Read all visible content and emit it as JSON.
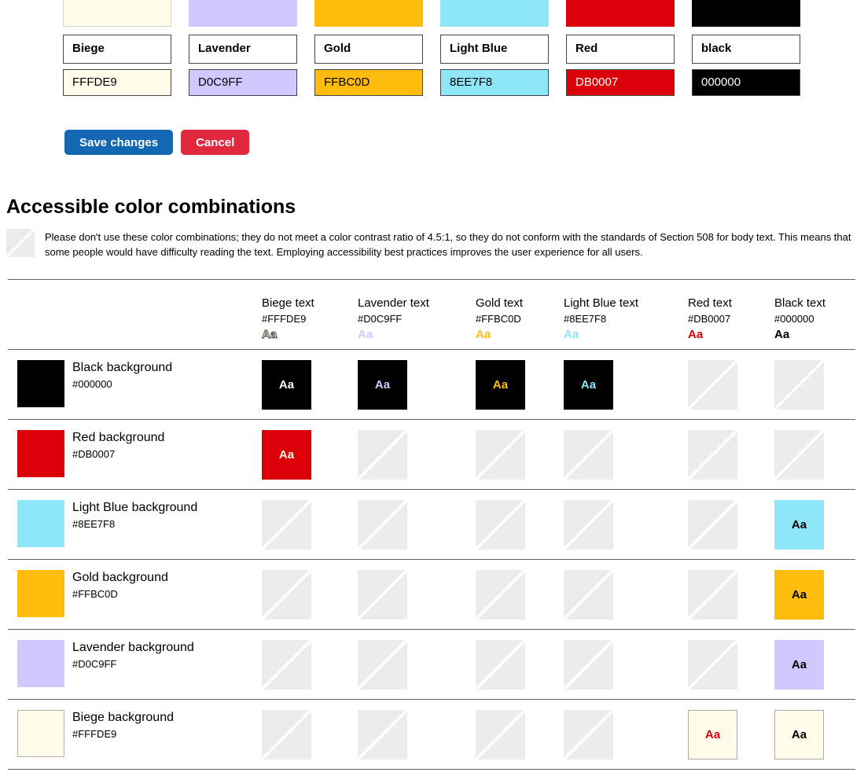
{
  "palette_editor": {
    "swatches": [
      {
        "name": "Biege",
        "hex": "FFFDE9",
        "color": "#FFFDE9",
        "text_color": "#000000",
        "light": true
      },
      {
        "name": "Lavender",
        "hex": "D0C9FF",
        "color": "#D0C9FF",
        "text_color": "#000000"
      },
      {
        "name": "Gold",
        "hex": "FFBC0D",
        "color": "#FFBC0D",
        "text_color": "#000000"
      },
      {
        "name": "Light Blue",
        "hex": "8EE7F8",
        "color": "#8EE7F8",
        "text_color": "#000000"
      },
      {
        "name": "Red",
        "hex": "DB0007",
        "color": "#DB0007",
        "text_color": "#FFFFFF"
      },
      {
        "name": "black",
        "hex": "000000",
        "color": "#000000",
        "text_color": "#FFFFFF"
      }
    ],
    "save_label": "Save changes",
    "cancel_label": "Cancel"
  },
  "accessibility_section": {
    "title": "Accessible color combinations",
    "disclaimer": "Please don't use these color combinations; they do not meet a color contrast ratio of 4.5:1, so they do not conform with the standards of Section 508 for body text. This means that some people would have difficulty reading the text. Employing accessibility best practices improves the user experience for all users."
  },
  "matrix": {
    "sample_text": "Aa",
    "columns": [
      {
        "label": "Biege text",
        "hex": "#FFFDE9",
        "color": "#FFFDE9",
        "outlined": true
      },
      {
        "label": "Lavender text",
        "hex": "#D0C9FF",
        "color": "#D0C9FF"
      },
      {
        "label": "Gold text",
        "hex": "#FFBC0D",
        "color": "#FFBC0D"
      },
      {
        "label": "Light Blue text",
        "hex": "#8EE7F8",
        "color": "#8EE7F8"
      },
      {
        "label": "Red text",
        "hex": "#DB0007",
        "color": "#DB0007"
      },
      {
        "label": "Black text",
        "hex": "#000000",
        "color": "#000000"
      }
    ],
    "rows": [
      {
        "label": "Black background",
        "hex": "#000000",
        "color": "#000000",
        "cells": [
          "aa",
          "aa",
          "aa",
          "aa",
          "na",
          "na"
        ]
      },
      {
        "label": "Red background",
        "hex": "#DB0007",
        "color": "#DB0007",
        "cells": [
          "aa",
          "na",
          "na",
          "na",
          "na",
          "na"
        ]
      },
      {
        "label": "Light Blue background",
        "hex": "#8EE7F8",
        "color": "#8EE7F8",
        "cells": [
          "na",
          "na",
          "na",
          "na",
          "na",
          "aa"
        ]
      },
      {
        "label": "Gold background",
        "hex": "#FFBC0D",
        "color": "#FFBC0D",
        "cells": [
          "na",
          "na",
          "na",
          "na",
          "na",
          "aa"
        ]
      },
      {
        "label": "Lavender background",
        "hex": "#D0C9FF",
        "color": "#D0C9FF",
        "cells": [
          "na",
          "na",
          "na",
          "na",
          "na",
          "aa"
        ]
      },
      {
        "label": "Biege background",
        "hex": "#FFFDE9",
        "color": "#FFFDE9",
        "light": true,
        "cells": [
          "na",
          "na",
          "na",
          "na",
          "aa",
          "aa"
        ]
      }
    ]
  },
  "colors": {
    "save_button": "#1467b2",
    "cancel_button": "#e0293e",
    "na_cell": "#ececec",
    "rule": "#5f6367"
  }
}
